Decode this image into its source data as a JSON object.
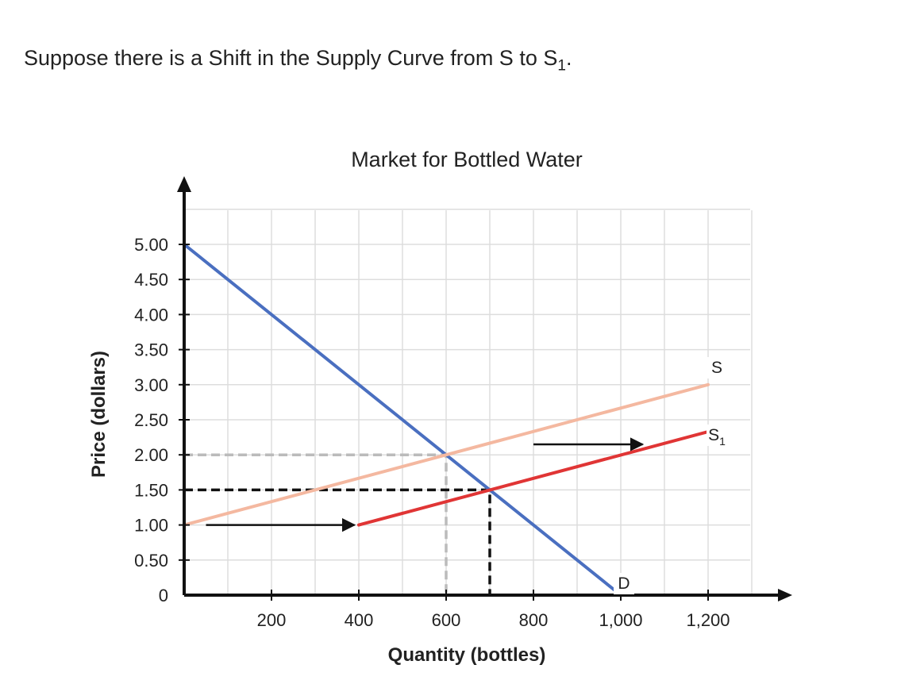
{
  "question": {
    "text": "Suppose there is a Shift in the Supply Curve from S to S",
    "subscript": "1",
    "suffix": "."
  },
  "chart_data": {
    "type": "line",
    "title": "Market for Bottled Water",
    "xlabel": "Quantity (bottles)",
    "ylabel": "Price (dollars)",
    "xlim": [
      0,
      1300
    ],
    "ylim": [
      0,
      5.5
    ],
    "x_ticks": [
      200,
      400,
      600,
      800,
      1000,
      1200
    ],
    "x_tick_labels": [
      "200",
      "400",
      "600",
      "800",
      "1,000",
      "1,200"
    ],
    "y_ticks": [
      0,
      0.5,
      1.0,
      1.5,
      2.0,
      2.5,
      3.0,
      3.5,
      4.0,
      4.5,
      5.0
    ],
    "y_tick_labels": [
      "0",
      "0.50",
      "1.00",
      "1.50",
      "2.00",
      "2.50",
      "3.00",
      "3.50",
      "4.00",
      "4.50",
      "5.00"
    ],
    "grid": true,
    "series": [
      {
        "name": "D",
        "color": "#4a6fc0",
        "points": [
          [
            0,
            5.0
          ],
          [
            1000,
            0
          ]
        ]
      },
      {
        "name": "S",
        "color": "#f4b8a0",
        "points": [
          [
            0,
            1.0
          ],
          [
            1200,
            3.0
          ]
        ]
      },
      {
        "name": "S",
        "subscript": "1",
        "color": "#e03535",
        "points": [
          [
            400,
            1.0
          ],
          [
            1200,
            2.33
          ]
        ]
      }
    ],
    "reference_lines": [
      {
        "color": "#bbbbbb",
        "points": [
          [
            0,
            2.0
          ],
          [
            600,
            2.0
          ],
          [
            600,
            0
          ]
        ]
      },
      {
        "color": "#111111",
        "points": [
          [
            0,
            1.5
          ],
          [
            700,
            1.5
          ],
          [
            700,
            0
          ]
        ]
      }
    ],
    "arrows": [
      {
        "from": [
          50,
          1.0
        ],
        "to": [
          390,
          1.0
        ]
      },
      {
        "from": [
          800,
          2.15
        ],
        "to": [
          1050,
          2.15
        ]
      }
    ],
    "colors": {
      "axis": "#111111",
      "grid": "#dddddd"
    }
  }
}
